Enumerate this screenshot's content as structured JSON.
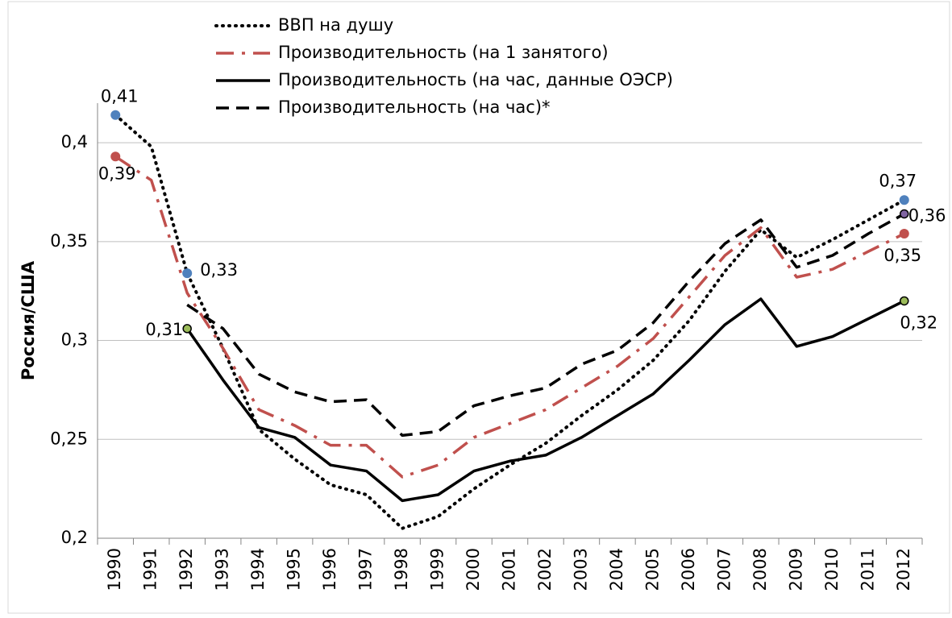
{
  "chart_data": {
    "type": "line",
    "y_label": "Россия/США",
    "categories": [
      "1990",
      "1991",
      "1992",
      "1993",
      "1994",
      "1995",
      "1996",
      "1997",
      "1998",
      "1999",
      "2000",
      "2001",
      "2002",
      "2003",
      "2004",
      "2005",
      "2006",
      "2007",
      "2008",
      "2009",
      "2010",
      "2011",
      "2012"
    ],
    "series": [
      {
        "name": "ВВП на душу",
        "color": "#000000",
        "dash": "dotted",
        "marker_color": "#4f81bd",
        "values": [
          0.414,
          0.398,
          0.334,
          0.296,
          0.255,
          0.24,
          0.227,
          0.222,
          0.205,
          0.211,
          0.225,
          0.237,
          0.248,
          0.262,
          0.275,
          0.29,
          0.31,
          0.335,
          0.356,
          0.342,
          0.351,
          0.361,
          0.371
        ],
        "value_labels": [
          "0,41",
          null,
          "0,33",
          null,
          null,
          null,
          null,
          null,
          null,
          null,
          null,
          null,
          null,
          null,
          null,
          null,
          null,
          null,
          null,
          null,
          null,
          null,
          "0,37"
        ]
      },
      {
        "name": "Производительность (на 1 занятого)",
        "color": "#c0504d",
        "dash": "dashdot",
        "marker_color": "#c0504d",
        "values": [
          0.393,
          0.381,
          0.324,
          0.296,
          0.265,
          0.257,
          0.247,
          0.247,
          0.231,
          0.237,
          0.251,
          0.258,
          0.265,
          0.276,
          0.287,
          0.301,
          0.322,
          0.343,
          0.357,
          0.332,
          0.336,
          0.345,
          0.354
        ],
        "value_labels": [
          "0,39",
          null,
          null,
          null,
          null,
          null,
          null,
          null,
          null,
          null,
          null,
          null,
          null,
          null,
          null,
          null,
          null,
          null,
          null,
          null,
          null,
          null,
          "0,35"
        ]
      },
      {
        "name": "Производительность (на час, данные ОЭСР)",
        "color": "#000000",
        "dash": "solid",
        "marker_color": "#9bbb59",
        "values": [
          null,
          null,
          0.306,
          0.28,
          0.256,
          0.251,
          0.237,
          0.234,
          0.219,
          0.222,
          0.234,
          0.239,
          0.242,
          0.251,
          0.262,
          0.273,
          0.29,
          0.308,
          0.321,
          0.297,
          0.302,
          0.311,
          0.32
        ],
        "value_labels": [
          null,
          null,
          "0,31",
          null,
          null,
          null,
          null,
          null,
          null,
          null,
          null,
          null,
          null,
          null,
          null,
          null,
          null,
          null,
          null,
          null,
          null,
          null,
          "0,32"
        ]
      },
      {
        "name": "Производительность (на час)*",
        "color": "#000000",
        "dash": "dashed",
        "marker_color": "#8064a2",
        "values": [
          null,
          null,
          0.318,
          0.306,
          0.283,
          0.274,
          0.269,
          0.27,
          0.252,
          0.254,
          0.267,
          0.272,
          0.276,
          0.288,
          0.295,
          0.309,
          0.33,
          0.349,
          0.361,
          0.337,
          0.343,
          0.354,
          0.364
        ],
        "value_labels": [
          null,
          null,
          null,
          null,
          null,
          null,
          null,
          null,
          null,
          null,
          null,
          null,
          null,
          null,
          null,
          null,
          null,
          null,
          null,
          null,
          null,
          null,
          "0,36"
        ]
      }
    ],
    "ylim": [
      0.2,
      0.42
    ],
    "yticks": [
      {
        "value": 0.2,
        "label": "0,2"
      },
      {
        "value": 0.25,
        "label": "0,25"
      },
      {
        "value": 0.3,
        "label": "0,3"
      },
      {
        "value": 0.35,
        "label": "0,35"
      },
      {
        "value": 0.4,
        "label": "0,4"
      }
    ],
    "grid": true,
    "legend": "top"
  }
}
